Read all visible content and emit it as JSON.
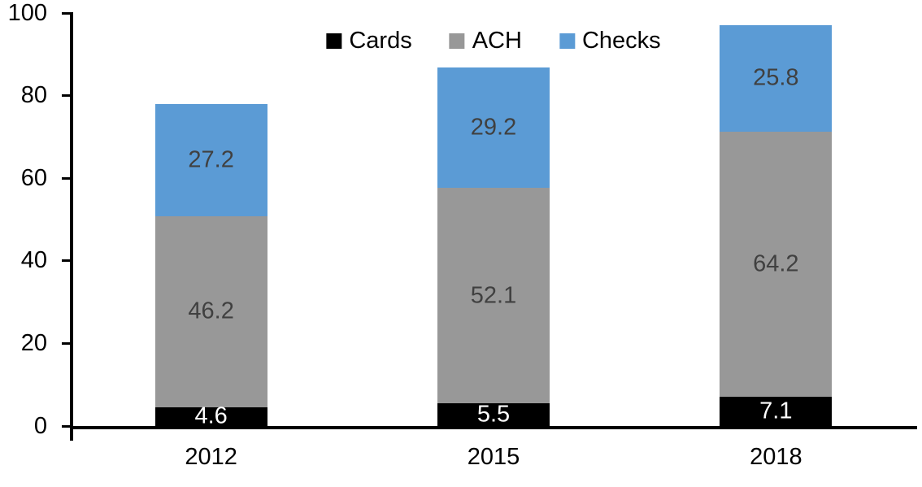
{
  "chart_data": {
    "type": "bar",
    "stacked": true,
    "title": "",
    "xlabel": "",
    "ylabel": "",
    "categories": [
      "2012",
      "2015",
      "2018"
    ],
    "series": [
      {
        "name": "Cards",
        "color": "#000000",
        "label_color": "#ffffff",
        "values": [
          4.6,
          5.5,
          7.1
        ]
      },
      {
        "name": "ACH",
        "color": "#989898",
        "label_color": "#404040",
        "values": [
          46.2,
          52.1,
          64.2
        ]
      },
      {
        "name": "Checks",
        "color": "#5b9bd5",
        "label_color": "#404040",
        "values": [
          27.2,
          29.2,
          25.8
        ]
      }
    ],
    "ylim": [
      0,
      100
    ],
    "yticks": [
      0,
      20,
      40,
      60,
      80,
      100
    ],
    "grid": false,
    "data_labels": true,
    "legend_position": "top-center",
    "axis_color": "#000000",
    "text_color": "#000000"
  }
}
